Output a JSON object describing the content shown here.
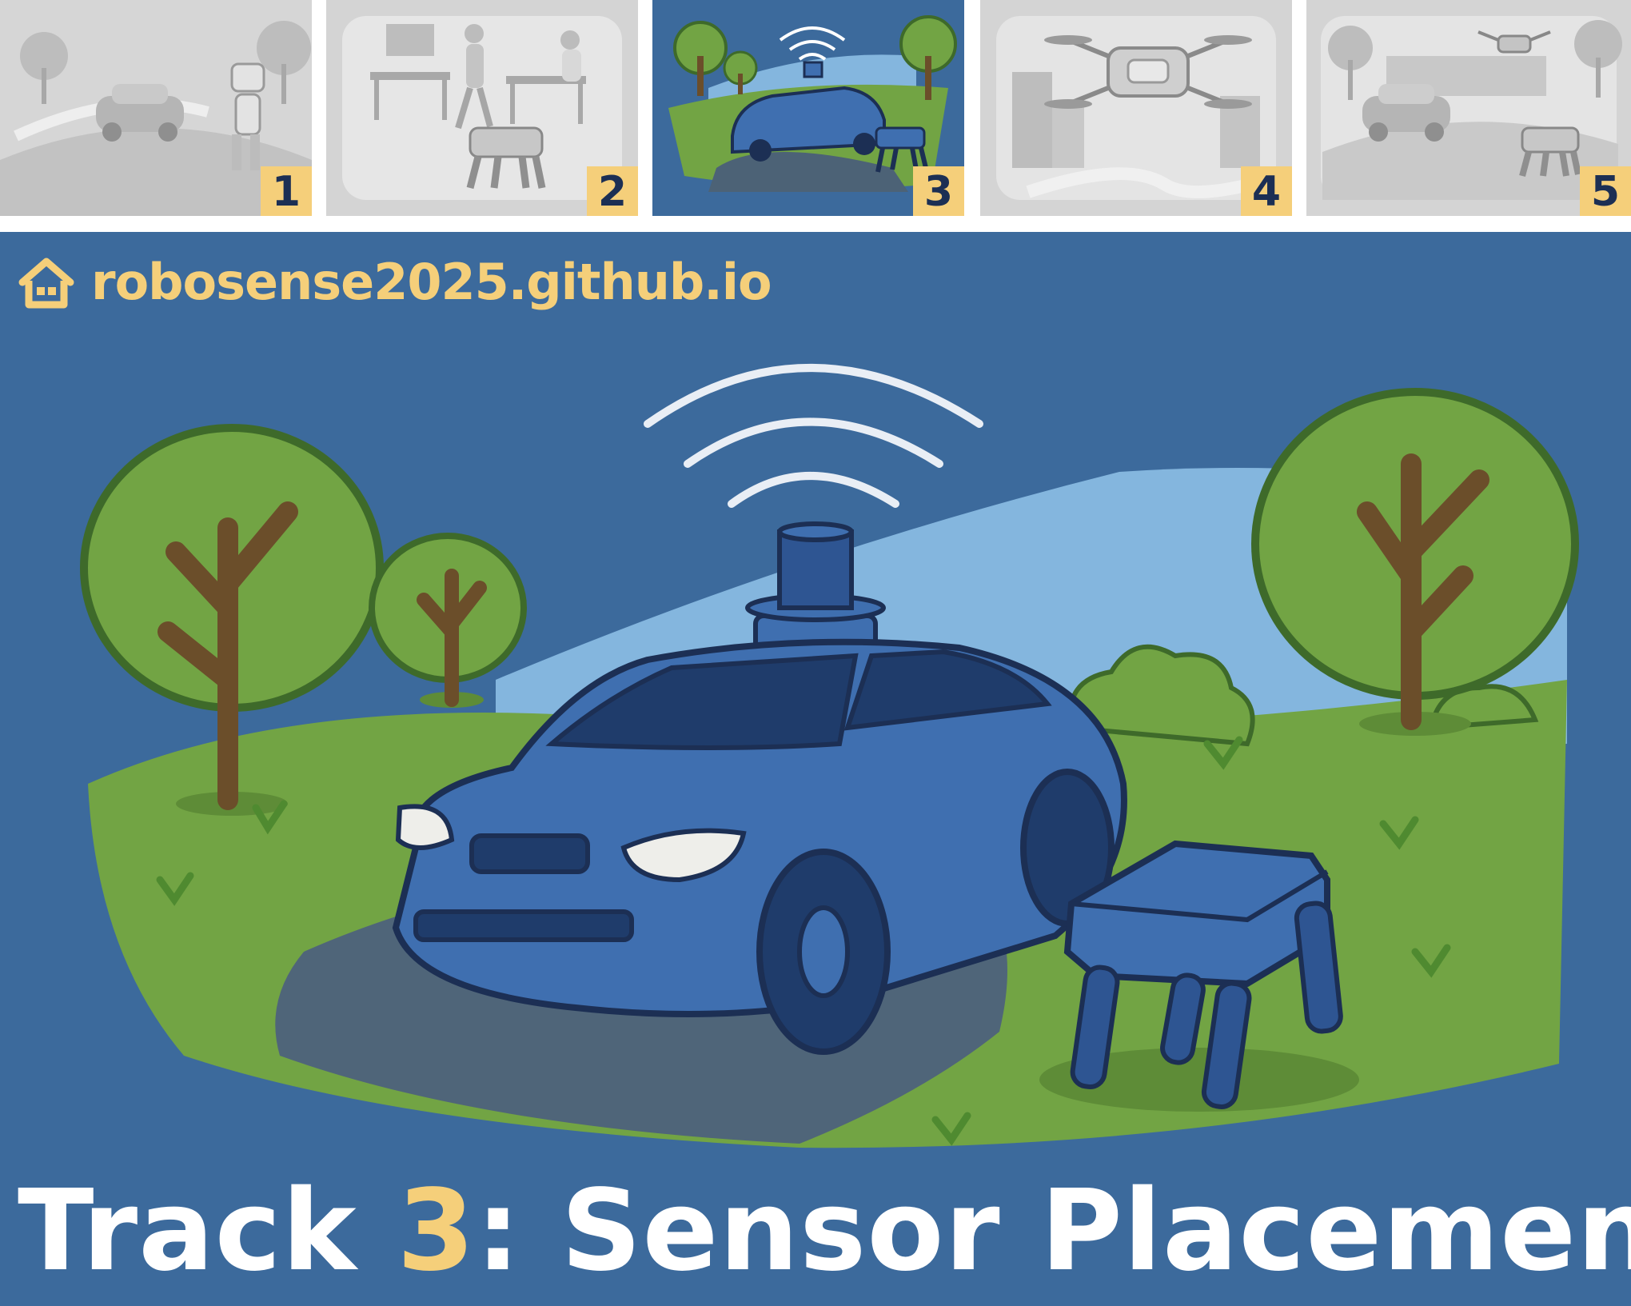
{
  "thumbnails": [
    {
      "number": "1",
      "active": false
    },
    {
      "number": "2",
      "active": false
    },
    {
      "number": "3",
      "active": true
    },
    {
      "number": "4",
      "active": false
    },
    {
      "number": "5",
      "active": false
    }
  ],
  "header": {
    "url": "robosense2025.github.io",
    "home_icon": "home-icon"
  },
  "title": {
    "prefix": "Track ",
    "number": "3",
    "suffix": ": Sensor Placement"
  },
  "colors": {
    "accent": "#f5cf7a",
    "background": "#3c6a9c",
    "grass": "#72a444",
    "car": "#3f6fb0",
    "outline": "#1c2f54"
  }
}
